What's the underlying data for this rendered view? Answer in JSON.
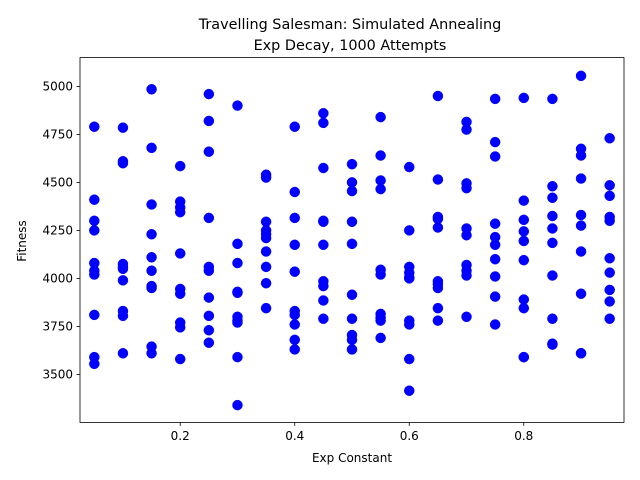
{
  "chart_data": {
    "type": "scatter",
    "title": "Travelling Salesman: Simulated Annealing",
    "subtitle": "Exp Decay, 1000 Attempts",
    "xlabel": "Exp Constant",
    "ylabel": "Fitness",
    "xlim": [
      0.025,
      0.975
    ],
    "ylim": [
      3250,
      5150
    ],
    "xticks": [
      0.2,
      0.4,
      0.6,
      0.8
    ],
    "xtick_labels": [
      "0.2",
      "0.4",
      "0.6",
      "0.8"
    ],
    "yticks": [
      3500,
      3750,
      4000,
      4250,
      4500,
      4750,
      5000
    ],
    "ytick_labels": [
      "3500",
      "3750",
      "4000",
      "4250",
      "4500",
      "4750",
      "5000"
    ],
    "grid": false,
    "marker_color": "#0000ff",
    "series": [
      {
        "x": [
          0.05,
          0.05,
          0.05,
          0.05,
          0.05,
          0.05,
          0.05,
          0.05,
          0.05,
          0.05,
          0.1,
          0.1,
          0.1,
          0.1,
          0.1,
          0.1,
          0.1,
          0.1,
          0.1,
          0.1,
          0.15,
          0.15,
          0.15,
          0.15,
          0.15,
          0.15,
          0.15,
          0.15,
          0.15,
          0.15,
          0.2,
          0.2,
          0.2,
          0.2,
          0.2,
          0.2,
          0.2,
          0.2,
          0.2,
          0.2,
          0.25,
          0.25,
          0.25,
          0.25,
          0.25,
          0.25,
          0.25,
          0.25,
          0.25,
          0.25,
          0.3,
          0.3,
          0.3,
          0.3,
          0.3,
          0.3,
          0.3,
          0.3,
          0.3,
          0.3,
          0.35,
          0.35,
          0.35,
          0.35,
          0.35,
          0.35,
          0.35,
          0.35,
          0.35,
          0.35,
          0.4,
          0.4,
          0.4,
          0.4,
          0.4,
          0.4,
          0.4,
          0.4,
          0.4,
          0.4,
          0.45,
          0.45,
          0.45,
          0.45,
          0.45,
          0.45,
          0.45,
          0.45,
          0.45,
          0.45,
          0.5,
          0.5,
          0.5,
          0.5,
          0.5,
          0.5,
          0.5,
          0.5,
          0.5,
          0.5,
          0.55,
          0.55,
          0.55,
          0.55,
          0.55,
          0.55,
          0.55,
          0.55,
          0.55,
          0.55,
          0.6,
          0.6,
          0.6,
          0.6,
          0.6,
          0.6,
          0.6,
          0.6,
          0.6,
          0.6,
          0.65,
          0.65,
          0.65,
          0.65,
          0.65,
          0.65,
          0.65,
          0.65,
          0.65,
          0.65,
          0.7,
          0.7,
          0.7,
          0.7,
          0.7,
          0.7,
          0.7,
          0.7,
          0.7,
          0.7,
          0.75,
          0.75,
          0.75,
          0.75,
          0.75,
          0.75,
          0.75,
          0.75,
          0.75,
          0.75,
          0.8,
          0.8,
          0.8,
          0.8,
          0.8,
          0.8,
          0.8,
          0.8,
          0.8,
          0.8,
          0.85,
          0.85,
          0.85,
          0.85,
          0.85,
          0.85,
          0.85,
          0.85,
          0.85,
          0.85,
          0.9,
          0.9,
          0.9,
          0.9,
          0.9,
          0.9,
          0.9,
          0.9,
          0.9,
          0.9,
          0.95,
          0.95,
          0.95,
          0.95,
          0.95,
          0.95,
          0.95,
          0.95,
          0.95,
          0.95
        ],
        "y": [
          4790,
          4410,
          4300,
          4250,
          4080,
          4040,
          4020,
          3810,
          3590,
          3555,
          4785,
          4610,
          4600,
          4075,
          4060,
          4050,
          3990,
          3830,
          3805,
          3610,
          4985,
          4680,
          4385,
          4230,
          4110,
          4040,
          3960,
          3950,
          3645,
          3610,
          4585,
          4400,
          4370,
          4345,
          4130,
          3945,
          3920,
          3770,
          3745,
          3580,
          4960,
          4820,
          4660,
          4315,
          4060,
          4040,
          3900,
          3805,
          3730,
          3665,
          4900,
          4180,
          4080,
          3930,
          3925,
          3800,
          3780,
          3770,
          3590,
          3340,
          4540,
          4525,
          4295,
          4250,
          4230,
          4210,
          4140,
          4060,
          3975,
          3845,
          4790,
          4450,
          4315,
          4175,
          4035,
          3830,
          3810,
          3760,
          3680,
          3630,
          4860,
          4810,
          4575,
          4300,
          4295,
          4175,
          3985,
          3960,
          3885,
          3790,
          4595,
          4500,
          4455,
          4295,
          4180,
          3915,
          3790,
          3705,
          3680,
          3630,
          4840,
          4640,
          4510,
          4465,
          4045,
          4020,
          3815,
          3795,
          3780,
          3690,
          4580,
          4250,
          4060,
          4030,
          4005,
          4000,
          3780,
          3760,
          3580,
          3415,
          4950,
          4515,
          4320,
          4310,
          4265,
          3985,
          3970,
          3950,
          3845,
          3780,
          4815,
          4775,
          4495,
          4470,
          4260,
          4225,
          4070,
          4040,
          4015,
          3800,
          4935,
          4710,
          4635,
          4285,
          4215,
          4175,
          4100,
          4010,
          3905,
          3760,
          4940,
          4405,
          4305,
          4245,
          4195,
          4095,
          3890,
          3845,
          3590,
          3590,
          4935,
          4480,
          4420,
          4325,
          4260,
          4185,
          4015,
          3790,
          3655,
          3660,
          5055,
          4675,
          4640,
          4520,
          4330,
          4275,
          4140,
          3920,
          3610,
          3610,
          4730,
          4485,
          4430,
          4320,
          4300,
          4105,
          4030,
          3940,
          3880,
          3790
        ]
      }
    ]
  }
}
